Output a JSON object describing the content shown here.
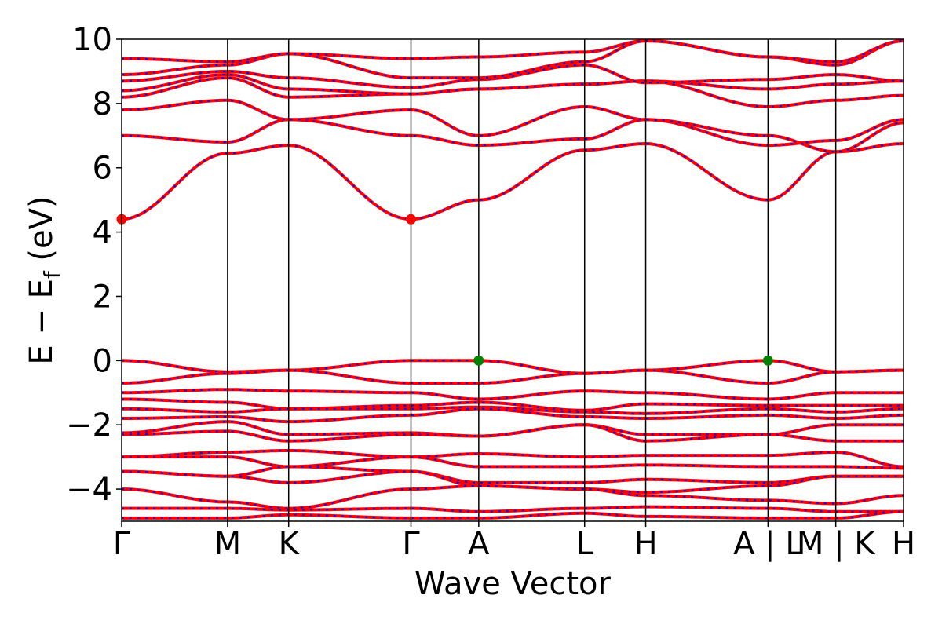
{
  "chart_data": {
    "type": "line",
    "title": "",
    "xlabel": "Wave Vector",
    "ylabel_main": "E − E",
    "ylabel_sub": "f",
    "ylabel_unit": " (eV)",
    "ylim": [
      -5,
      10
    ],
    "yticks": [
      10,
      8,
      6,
      4,
      2,
      0,
      -2,
      -4
    ],
    "ytick_labels": [
      "10",
      "8",
      "6",
      "4",
      "2",
      "0",
      "−2",
      "−4"
    ],
    "kpath": [
      {
        "label": "Γ",
        "k": 0.0
      },
      {
        "label": "M",
        "k": 1.0
      },
      {
        "label": "K",
        "k": 1.577
      },
      {
        "label": "Γ",
        "k": 2.732
      },
      {
        "label": "A",
        "k": 3.372
      },
      {
        "label": "L",
        "k": 4.372
      },
      {
        "label": "H",
        "k": 4.949
      },
      {
        "label": "A | L",
        "k": 6.104
      },
      {
        "label": "M | K",
        "k": 6.744
      },
      {
        "label": "H",
        "k": 7.384
      }
    ],
    "xlim": [
      0,
      7.384
    ],
    "colors": {
      "spin_up": "#ff0000",
      "spin_down": "#0000ff",
      "cbm": "#ff0000",
      "vbm": "#008000",
      "frame": "#000000"
    },
    "legend": "none",
    "grid": false,
    "cbm_points": [
      {
        "k": 0.0,
        "E": 4.4
      },
      {
        "k": 2.732,
        "E": 4.4
      }
    ],
    "vbm_points": [
      {
        "k": 3.372,
        "E": 0.0
      },
      {
        "k": 6.104,
        "E": 0.0
      }
    ],
    "bands": [
      {
        "name": "",
        "E": [
          4.4,
          6.45,
          6.7,
          4.4,
          5.0,
          6.55,
          6.75,
          5.0,
          6.5,
          6.75
        ]
      },
      {
        "name": "",
        "E": [
          7.0,
          6.8,
          7.5,
          7.0,
          6.7,
          6.9,
          7.5,
          6.7,
          6.85,
          7.5
        ]
      },
      {
        "name": "",
        "E": [
          7.8,
          8.1,
          7.5,
          7.8,
          7.0,
          7.9,
          7.5,
          7.0,
          6.5,
          7.4
        ]
      },
      {
        "name": "",
        "E": [
          8.2,
          8.8,
          8.2,
          8.3,
          8.45,
          8.6,
          8.7,
          7.9,
          8.1,
          8.25
        ]
      },
      {
        "name": "",
        "E": [
          8.4,
          8.9,
          8.45,
          8.3,
          8.45,
          8.6,
          8.7,
          8.45,
          8.6,
          8.7
        ]
      },
      {
        "name": "",
        "E": [
          8.7,
          9.0,
          8.8,
          8.5,
          8.75,
          9.2,
          8.65,
          8.75,
          8.9,
          8.7
        ]
      },
      {
        "name": "",
        "E": [
          8.9,
          9.2,
          9.55,
          8.8,
          8.8,
          9.3,
          9.95,
          9.45,
          9.2,
          9.95
        ]
      },
      {
        "name": "",
        "E": [
          9.4,
          9.3,
          9.55,
          9.4,
          9.45,
          9.6,
          9.95,
          9.45,
          9.3,
          9.95
        ]
      },
      {
        "name": "",
        "E": [
          0.0,
          -0.35,
          -0.3,
          0.0,
          0.0,
          -0.4,
          -0.3,
          0.0,
          -0.35,
          -0.3
        ]
      },
      {
        "name": "",
        "E": [
          -0.7,
          -0.4,
          -0.3,
          -0.7,
          -0.7,
          -0.4,
          -0.3,
          -0.7,
          -0.35,
          -0.3
        ]
      },
      {
        "name": "",
        "E": [
          -1.0,
          -0.9,
          -0.95,
          -1.0,
          -1.2,
          -0.95,
          -1.0,
          -1.2,
          -1.0,
          -1.0
        ]
      },
      {
        "name": "",
        "E": [
          -1.2,
          -1.3,
          -1.5,
          -1.4,
          -1.3,
          -1.55,
          -1.35,
          -1.4,
          -1.4,
          -1.4
        ]
      },
      {
        "name": "",
        "E": [
          -1.5,
          -1.6,
          -1.5,
          -1.5,
          -1.45,
          -1.6,
          -1.65,
          -1.5,
          -1.6,
          -1.5
        ]
      },
      {
        "name": "",
        "E": [
          -1.8,
          -1.75,
          -1.9,
          -1.7,
          -1.5,
          -1.75,
          -1.8,
          -1.7,
          -1.8,
          -1.7
        ]
      },
      {
        "name": "",
        "E": [
          -2.25,
          -1.9,
          -2.3,
          -2.25,
          -2.35,
          -2.0,
          -2.3,
          -2.3,
          -2.0,
          -2.0
        ]
      },
      {
        "name": "",
        "E": [
          -2.3,
          -2.2,
          -2.5,
          -2.3,
          -2.35,
          -2.0,
          -2.5,
          -2.3,
          -2.5,
          -2.5
        ]
      },
      {
        "name": "",
        "E": [
          -3.0,
          -2.85,
          -2.8,
          -3.0,
          -2.9,
          -3.0,
          -2.95,
          -2.95,
          -2.85,
          -3.3
        ]
      },
      {
        "name": "",
        "E": [
          -3.0,
          -3.0,
          -3.3,
          -3.0,
          -3.3,
          -3.3,
          -3.25,
          -3.3,
          -3.3,
          -3.35
        ]
      },
      {
        "name": "",
        "E": [
          -3.45,
          -3.6,
          -3.3,
          -3.45,
          -3.8,
          -3.8,
          -3.7,
          -3.8,
          -3.6,
          -3.6
        ]
      },
      {
        "name": "",
        "E": [
          -3.45,
          -3.6,
          -3.8,
          -3.45,
          -3.9,
          -4.0,
          -4.1,
          -3.9,
          -3.6,
          -3.6
        ]
      },
      {
        "name": "",
        "E": [
          -4.0,
          -4.4,
          -4.6,
          -4.0,
          -3.9,
          -4.0,
          -4.2,
          -4.35,
          -4.45,
          -4.2
        ]
      },
      {
        "name": "",
        "E": [
          -4.6,
          -4.6,
          -4.65,
          -4.6,
          -4.7,
          -4.6,
          -4.55,
          -4.6,
          -4.7,
          -4.7
        ]
      },
      {
        "name": "",
        "E": [
          -4.9,
          -4.9,
          -4.8,
          -4.9,
          -4.9,
          -4.75,
          -4.85,
          -4.9,
          -4.9,
          -4.7
        ]
      }
    ]
  }
}
